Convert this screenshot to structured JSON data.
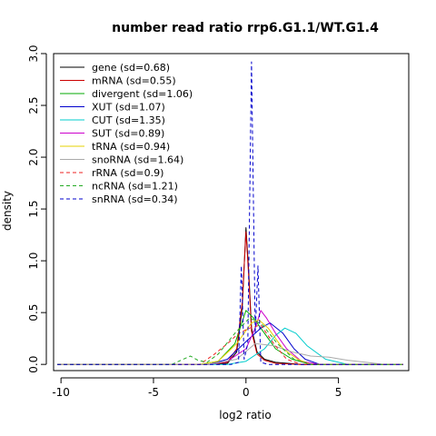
{
  "chart_data": {
    "type": "line",
    "title": "number read ratio rrp6.G1.1/WT.G1.4",
    "xlabel": "log2 ratio",
    "ylabel": "density",
    "xlim": [
      -10.4,
      8.8
    ],
    "ylim": [
      -0.06,
      3.0
    ],
    "x_ticks": [
      -10,
      -5,
      0,
      5
    ],
    "y_ticks": [
      0.0,
      0.5,
      1.0,
      1.5,
      2.0,
      2.5,
      3.0
    ],
    "x_tick_labels": [
      "-10",
      "-5",
      "0",
      "5"
    ],
    "y_tick_labels": [
      "0.0",
      "0.5",
      "1.0",
      "1.5",
      "2.0",
      "2.5",
      "3.0"
    ],
    "grid": false,
    "legend_position": "top-left",
    "series": [
      {
        "name": "gene (sd=0.68)",
        "color": "#000000",
        "dash": "solid",
        "points": [
          [
            -10.2,
            0
          ],
          [
            -2,
            0
          ],
          [
            -1,
            0.01
          ],
          [
            -0.5,
            0.12
          ],
          [
            -0.2,
            0.55
          ],
          [
            0,
            1.32
          ],
          [
            0.15,
            0.9
          ],
          [
            0.3,
            0.35
          ],
          [
            0.6,
            0.12
          ],
          [
            1,
            0.05
          ],
          [
            1.6,
            0.02
          ],
          [
            3,
            0
          ],
          [
            8.5,
            0
          ]
        ]
      },
      {
        "name": "mRNA (sd=0.55)",
        "color": "#cc0000",
        "dash": "solid",
        "points": [
          [
            -10.2,
            0
          ],
          [
            -2,
            0
          ],
          [
            -1,
            0.02
          ],
          [
            -0.5,
            0.15
          ],
          [
            -0.2,
            0.6
          ],
          [
            0,
            1.28
          ],
          [
            0.15,
            0.85
          ],
          [
            0.3,
            0.32
          ],
          [
            0.6,
            0.1
          ],
          [
            1,
            0.04
          ],
          [
            1.6,
            0.01
          ],
          [
            3,
            0
          ],
          [
            8.5,
            0
          ]
        ]
      },
      {
        "name": "divergent (sd=1.06)",
        "color": "#00aa00",
        "dash": "solid",
        "points": [
          [
            -10.2,
            0
          ],
          [
            -2.5,
            0
          ],
          [
            -1.5,
            0.03
          ],
          [
            -0.6,
            0.2
          ],
          [
            0,
            0.52
          ],
          [
            0.4,
            0.45
          ],
          [
            1,
            0.3
          ],
          [
            1.6,
            0.15
          ],
          [
            2.5,
            0.05
          ],
          [
            3.5,
            0
          ],
          [
            8.5,
            0
          ]
        ]
      },
      {
        "name": "XUT (sd=1.07)",
        "color": "#0000cc",
        "dash": "solid",
        "points": [
          [
            -10.2,
            0
          ],
          [
            -2,
            0
          ],
          [
            -1,
            0.05
          ],
          [
            0,
            0.22
          ],
          [
            0.8,
            0.35
          ],
          [
            1.3,
            0.4
          ],
          [
            2,
            0.3
          ],
          [
            2.6,
            0.15
          ],
          [
            3.2,
            0.05
          ],
          [
            4,
            0
          ],
          [
            8.5,
            0
          ]
        ]
      },
      {
        "name": "CUT (sd=1.35)",
        "color": "#00cccc",
        "dash": "solid",
        "points": [
          [
            -10.2,
            0
          ],
          [
            -1,
            0
          ],
          [
            0,
            0.03
          ],
          [
            1,
            0.15
          ],
          [
            1.6,
            0.28
          ],
          [
            2.1,
            0.35
          ],
          [
            2.7,
            0.3
          ],
          [
            3.3,
            0.18
          ],
          [
            4.3,
            0.05
          ],
          [
            5.5,
            0
          ],
          [
            8.5,
            0
          ]
        ]
      },
      {
        "name": "SUT (sd=0.89)",
        "color": "#cc00cc",
        "dash": "solid",
        "points": [
          [
            -10.2,
            0
          ],
          [
            -2,
            0
          ],
          [
            -1,
            0.03
          ],
          [
            0,
            0.15
          ],
          [
            0.5,
            0.35
          ],
          [
            0.8,
            0.52
          ],
          [
            1.1,
            0.45
          ],
          [
            1.6,
            0.3
          ],
          [
            2.2,
            0.15
          ],
          [
            3,
            0.03
          ],
          [
            4,
            0
          ],
          [
            8.5,
            0
          ]
        ]
      },
      {
        "name": "tRNA (sd=0.94)",
        "color": "#e6d000",
        "dash": "solid",
        "points": [
          [
            -10.2,
            0
          ],
          [
            -2.5,
            0
          ],
          [
            -1.5,
            0.03
          ],
          [
            -0.5,
            0.2
          ],
          [
            0.3,
            0.4
          ],
          [
            0.7,
            0.43
          ],
          [
            1.2,
            0.35
          ],
          [
            2,
            0.15
          ],
          [
            2.8,
            0.05
          ],
          [
            3.5,
            0
          ],
          [
            8.5,
            0
          ]
        ]
      },
      {
        "name": "snoRNA (sd=1.64)",
        "color": "#aaaaaa",
        "dash": "solid",
        "points": [
          [
            -10.2,
            0
          ],
          [
            -2,
            0
          ],
          [
            -0.5,
            0.05
          ],
          [
            0.5,
            0.2
          ],
          [
            1.5,
            0.18
          ],
          [
            2.5,
            0.12
          ],
          [
            3.5,
            0.08
          ],
          [
            4.5,
            0.07
          ],
          [
            5.5,
            0.04
          ],
          [
            6.5,
            0.02
          ],
          [
            7.5,
            0
          ],
          [
            8.5,
            0
          ]
        ]
      },
      {
        "name": "rRNA (sd=0.9)",
        "color": "#ee2222",
        "dash": "dashed",
        "points": [
          [
            -10.2,
            0
          ],
          [
            -2.5,
            0
          ],
          [
            -1.7,
            0.1
          ],
          [
            -1,
            0.2
          ],
          [
            -0.4,
            0.3
          ],
          [
            0.2,
            0.35
          ],
          [
            0.8,
            0.38
          ],
          [
            1.5,
            0.2
          ],
          [
            2.2,
            0.05
          ],
          [
            3,
            0
          ],
          [
            8.5,
            0
          ]
        ]
      },
      {
        "name": "ncRNA (sd=1.21)",
        "color": "#22aa22",
        "dash": "dashed",
        "points": [
          [
            -10.2,
            0
          ],
          [
            -4,
            0
          ],
          [
            -3.4,
            0.05
          ],
          [
            -3,
            0.08
          ],
          [
            -2.6,
            0.04
          ],
          [
            -2.1,
            0.02
          ],
          [
            -1.5,
            0.1
          ],
          [
            -0.6,
            0.3
          ],
          [
            0.2,
            0.45
          ],
          [
            0.9,
            0.38
          ],
          [
            1.7,
            0.2
          ],
          [
            2.6,
            0.05
          ],
          [
            3.5,
            0
          ],
          [
            8.5,
            0
          ]
        ]
      },
      {
        "name": "snRNA (sd=0.34)",
        "color": "#0000cc",
        "dash": "dashed",
        "points": [
          [
            -10.2,
            0
          ],
          [
            -0.8,
            0
          ],
          [
            -0.4,
            0.02
          ],
          [
            -0.25,
            0.95
          ],
          [
            -0.1,
            0.05
          ],
          [
            0.1,
            0.2
          ],
          [
            0.3,
            2.92
          ],
          [
            0.5,
            0.3
          ],
          [
            0.65,
            0.95
          ],
          [
            0.8,
            0.02
          ],
          [
            1.2,
            0
          ],
          [
            8.5,
            0
          ]
        ]
      }
    ]
  }
}
